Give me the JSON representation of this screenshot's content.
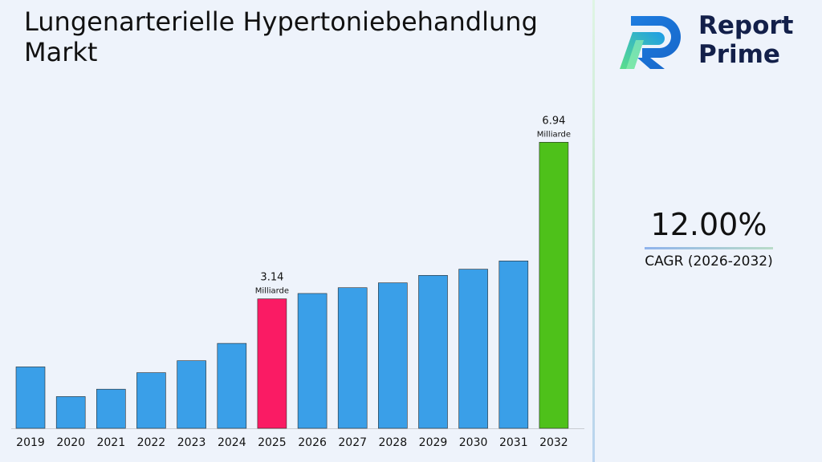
{
  "title_line1": "Lungenarterielle Hypertoniebehandlung",
  "title_line2": "Markt",
  "logo": {
    "line1": "Report",
    "line2": "Prime"
  },
  "cagr": {
    "value": "12.00%",
    "label": "CAGR (2026-2032)"
  },
  "colors": {
    "default_bar": "#3a9fe8",
    "highlight_2025": "#fa1b64",
    "highlight_2032": "#4ec11a"
  },
  "chart_data": {
    "type": "bar",
    "categories": [
      "2019",
      "2020",
      "2021",
      "2022",
      "2023",
      "2024",
      "2025",
      "2026",
      "2027",
      "2028",
      "2029",
      "2030",
      "2031",
      "2032"
    ],
    "values": [
      1.49,
      0.77,
      0.95,
      1.35,
      1.64,
      2.06,
      3.14,
      3.27,
      3.41,
      3.53,
      3.71,
      3.86,
      4.06,
      6.94
    ],
    "bar_colors": [
      "#3a9fe8",
      "#3a9fe8",
      "#3a9fe8",
      "#3a9fe8",
      "#3a9fe8",
      "#3a9fe8",
      "#fa1b64",
      "#3a9fe8",
      "#3a9fe8",
      "#3a9fe8",
      "#3a9fe8",
      "#3a9fe8",
      "#3a9fe8",
      "#4ec11a"
    ],
    "data_labels": [
      {
        "category": "2025",
        "value": "3.14",
        "unit": "Milliarde"
      },
      {
        "category": "2032",
        "value": "6.94",
        "unit": "Milliarde"
      }
    ],
    "title": "Lungenarterielle Hypertoniebehandlung Markt",
    "xlabel": "",
    "ylabel": "",
    "grid": false
  }
}
